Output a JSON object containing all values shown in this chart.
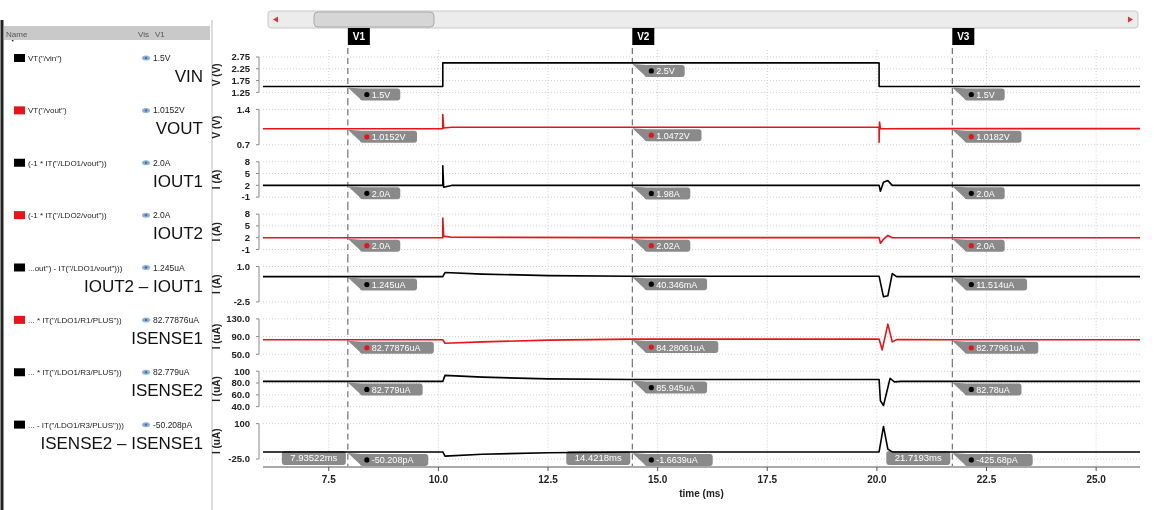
{
  "chart_data": [
    {
      "type": "line",
      "title": "VIN",
      "ylabel": "V (V)",
      "legend": "left",
      "grid": true,
      "tick_labels": "y",
      "xlim": [
        6,
        26
      ],
      "xticks": [
        7.5,
        10,
        12.5,
        15,
        17.5,
        20,
        22.5,
        25
      ],
      "ylim": [
        1.25,
        2.75
      ],
      "yticks": [
        1.25,
        1.75,
        2.25,
        2.75
      ],
      "series": [
        {
          "name": "VT(\"/vin\")",
          "color": "#000000",
          "x": [
            6,
            10.1,
            10.1,
            20.05,
            20.05,
            26
          ],
          "values": [
            1.5,
            1.5,
            2.5,
            2.5,
            1.5,
            1.5
          ]
        }
      ],
      "ref_lines": [
        {
          "axis": "x",
          "value": 7.93522,
          "label": "V1"
        },
        {
          "axis": "x",
          "value": 14.4218,
          "label": "V2"
        },
        {
          "axis": "x",
          "value": 21.7193,
          "label": "V3"
        }
      ],
      "annotations": [
        "Name",
        "Vis",
        "V1",
        "1.5V",
        {
          "text": "1.5V",
          "x": 7.93522,
          "y": 1.5
        },
        {
          "text": "2.5V",
          "x": 14.4218,
          "y": 2.5
        },
        {
          "text": "1.5V",
          "x": 21.7193,
          "y": 1.5
        }
      ]
    },
    {
      "type": "line",
      "title": "VOUT",
      "ylabel": "V (V)",
      "legend": "left",
      "grid": true,
      "tick_labels": "y",
      "xlim": [
        6,
        26
      ],
      "xticks": [
        7.5,
        10,
        12.5,
        15,
        17.5,
        20,
        22.5,
        25
      ],
      "ylim": [
        0.7,
        1.4
      ],
      "yticks": [
        0.7,
        1.4
      ],
      "series": [
        {
          "name": "VT(\"/vout\")",
          "color": "#e8141a",
          "x": [
            6,
            10.1,
            10.1,
            10.12,
            10.3,
            14.4218,
            20.05,
            20.05,
            20.06,
            20.08,
            21.7193,
            26
          ],
          "values": [
            1.0152,
            1.0152,
            1.3,
            1.03,
            1.045,
            1.0472,
            1.047,
            0.75,
            1.15,
            1.018,
            1.0182,
            1.0182
          ]
        }
      ],
      "ref_lines": [
        {
          "axis": "x",
          "value": 7.93522
        },
        {
          "axis": "x",
          "value": 14.4218
        },
        {
          "axis": "x",
          "value": 21.7193
        }
      ],
      "annotations": [
        "1.0152V",
        {
          "text": "1.0152V",
          "x": 7.93522,
          "y": 1.0152
        },
        {
          "text": "1.0472V",
          "x": 14.4218,
          "y": 1.0472
        },
        {
          "text": "1.0182V",
          "x": 21.7193,
          "y": 1.0182
        }
      ]
    },
    {
      "type": "line",
      "title": "IOUT1",
      "ylabel": "I (A)",
      "legend": "left",
      "grid": true,
      "tick_labels": "y",
      "xlim": [
        6,
        26
      ],
      "xticks": [
        7.5,
        10,
        12.5,
        15,
        17.5,
        20,
        22.5,
        25
      ],
      "ylim": [
        -1,
        8
      ],
      "yticks": [
        -1,
        2,
        5,
        8
      ],
      "series": [
        {
          "name": "(-1 * IT(\"/LDO1/vout\"))",
          "color": "#000000",
          "x": [
            6,
            10.1,
            10.1,
            10.12,
            10.3,
            14.4218,
            20.05,
            20.08,
            20.15,
            20.25,
            20.35,
            20.5,
            21.7193,
            26
          ],
          "values": [
            2,
            2,
            7,
            1.5,
            1.98,
            1.98,
            1.98,
            0.5,
            2.8,
            3.2,
            2,
            2,
            2,
            2
          ]
        }
      ],
      "ref_lines": [
        {
          "axis": "x",
          "value": 7.93522
        },
        {
          "axis": "x",
          "value": 14.4218
        },
        {
          "axis": "x",
          "value": 21.7193
        }
      ],
      "annotations": [
        "2.0A",
        {
          "text": "2.0A",
          "x": 7.93522,
          "y": 2
        },
        {
          "text": "1.98A",
          "x": 14.4218,
          "y": 1.98
        },
        {
          "text": "2.0A",
          "x": 21.7193,
          "y": 2
        }
      ]
    },
    {
      "type": "line",
      "title": "IOUT2",
      "ylabel": "I (A)",
      "legend": "left",
      "grid": true,
      "tick_labels": "y",
      "xlim": [
        6,
        26
      ],
      "xticks": [
        7.5,
        10,
        12.5,
        15,
        17.5,
        20,
        22.5,
        25
      ],
      "ylim": [
        -1,
        8
      ],
      "yticks": [
        -1,
        2,
        5,
        8
      ],
      "series": [
        {
          "name": "(-1 * IT(\"/LDO2/vout\"))",
          "color": "#e8141a",
          "x": [
            6,
            10.1,
            10.1,
            10.12,
            10.3,
            14.4218,
            20.05,
            20.08,
            20.15,
            20.25,
            20.35,
            20.5,
            21.7193,
            26
          ],
          "values": [
            2,
            2,
            7,
            2.4,
            2.1,
            2.02,
            2.02,
            0.6,
            1.6,
            2.6,
            2,
            2,
            2,
            2
          ]
        }
      ],
      "ref_lines": [
        {
          "axis": "x",
          "value": 7.93522
        },
        {
          "axis": "x",
          "value": 14.4218
        },
        {
          "axis": "x",
          "value": 21.7193
        }
      ],
      "annotations": [
        "2.0A",
        {
          "text": "2.0A",
          "x": 7.93522,
          "y": 2
        },
        {
          "text": "2.02A",
          "x": 14.4218,
          "y": 2.02
        },
        {
          "text": "2.0A",
          "x": 21.7193,
          "y": 2
        }
      ]
    },
    {
      "type": "line",
      "title": "IOUT2 – IOUT1",
      "ylabel": "I (A)",
      "legend": "left",
      "grid": true,
      "tick_labels": "y",
      "xlim": [
        6,
        26
      ],
      "xticks": [
        7.5,
        10,
        12.5,
        15,
        17.5,
        20,
        22.5,
        25
      ],
      "ylim": [
        -2.5,
        1
      ],
      "yticks": [
        -2.5,
        {
          "value": 1,
          "label": "1.0"
        }
      ],
      "series": [
        {
          "name": "...out\") - IT(\"/LDO1/vout\")))",
          "color": "#000000",
          "x": [
            6,
            10.1,
            10.15,
            11,
            12.5,
            14.4218,
            20.05,
            20.15,
            20.25,
            20.35,
            20.45,
            21.7193,
            26
          ],
          "values": [
            0,
            0,
            0.4,
            0.25,
            0.1,
            0.04,
            0.04,
            -2,
            -1.9,
            0.3,
            0,
            0,
            0
          ]
        }
      ],
      "ref_lines": [
        {
          "axis": "x",
          "value": 7.93522
        },
        {
          "axis": "x",
          "value": 14.4218
        },
        {
          "axis": "x",
          "value": 21.7193
        }
      ],
      "annotations": [
        "1.245uA",
        {
          "text": "1.245uA",
          "x": 7.93522,
          "y": 0
        },
        {
          "text": "40.346mA",
          "x": 14.4218,
          "y": 0.04
        },
        {
          "text": "11.514uA",
          "x": 21.7193,
          "y": 0
        }
      ]
    },
    {
      "type": "line",
      "title": "ISENSE1",
      "ylabel": "I (uA)",
      "legend": "left",
      "grid": true,
      "tick_labels": "y",
      "xlim": [
        6,
        26
      ],
      "xticks": [
        7.5,
        10,
        12.5,
        15,
        17.5,
        20,
        22.5,
        25
      ],
      "ylim": [
        50,
        130
      ],
      "yticks": [
        {
          "value": 50,
          "label": "50.0"
        },
        {
          "value": 90,
          "label": "90.0"
        },
        {
          "value": 130,
          "label": "130.0"
        }
      ],
      "series": [
        {
          "name": "... * IT(\"/LDO1/R1/PLUS\"))",
          "color": "#e8141a",
          "x": [
            6,
            10.1,
            10.15,
            11,
            12.5,
            14.4218,
            20.05,
            20.12,
            20.25,
            20.35,
            20.45,
            21.7193,
            26
          ],
          "values": [
            82.78,
            82.78,
            75,
            78,
            82,
            84.28,
            84.28,
            60,
            118,
            78,
            83,
            82.78,
            82.78
          ]
        }
      ],
      "ref_lines": [
        {
          "axis": "x",
          "value": 7.93522
        },
        {
          "axis": "x",
          "value": 14.4218
        },
        {
          "axis": "x",
          "value": 21.7193
        }
      ],
      "annotations": [
        "82.77876uA",
        {
          "text": "82.77876uA",
          "x": 7.93522,
          "y": 82.78
        },
        {
          "text": "84.28061uA",
          "x": 14.4218,
          "y": 84.28
        },
        {
          "text": "82.77961uA",
          "x": 21.7193,
          "y": 82.78
        }
      ]
    },
    {
      "type": "line",
      "title": "ISENSE2",
      "ylabel": "I (uA)",
      "legend": "left",
      "grid": true,
      "tick_labels": "y",
      "xlim": [
        6,
        26
      ],
      "xticks": [
        7.5,
        10,
        12.5,
        15,
        17.5,
        20,
        22.5,
        25
      ],
      "ylim": [
        40,
        100
      ],
      "yticks": [
        {
          "value": 40,
          "label": "40.0"
        },
        {
          "value": 60,
          "label": "60.0"
        },
        {
          "value": 80,
          "label": "80.0"
        },
        100
      ],
      "series": [
        {
          "name": "... * IT(\"/LDO1/R3/PLUS\"))",
          "color": "#000000",
          "x": [
            6,
            10.1,
            10.15,
            11,
            12.5,
            14.4218,
            20.05,
            20.08,
            20.15,
            20.3,
            20.4,
            20.55,
            21.7193,
            26
          ],
          "values": [
            82.78,
            82.78,
            93,
            90,
            87,
            85.95,
            85.95,
            50,
            42,
            88,
            82,
            82.78,
            82.78,
            82.78
          ]
        }
      ],
      "ref_lines": [
        {
          "axis": "x",
          "value": 7.93522
        },
        {
          "axis": "x",
          "value": 14.4218
        },
        {
          "axis": "x",
          "value": 21.7193
        }
      ],
      "annotations": [
        "82.779uA",
        {
          "text": "82.779uA",
          "x": 7.93522,
          "y": 82.78
        },
        {
          "text": "85.945uA",
          "x": 14.4218,
          "y": 85.95
        },
        {
          "text": "82.78uA",
          "x": 21.7193,
          "y": 82.78
        }
      ]
    },
    {
      "type": "line",
      "title": "ISENSE2 – ISENSE1",
      "ylabel": "I (uA)",
      "xlabel": "time (ms)",
      "legend": "left",
      "grid": true,
      "xlim": [
        6,
        26
      ],
      "xticks": [
        {
          "value": 7.5,
          "label": "7.5"
        },
        {
          "value": 10,
          "label": "10.0"
        },
        {
          "value": 12.5,
          "label": "12.5"
        },
        {
          "value": 15,
          "label": "15.0"
        },
        {
          "value": 17.5,
          "label": "17.5"
        },
        {
          "value": 20,
          "label": "20.0"
        },
        {
          "value": 22.5,
          "label": "22.5"
        },
        {
          "value": 25,
          "label": "25.0"
        }
      ],
      "ylim": [
        -25,
        100
      ],
      "yticks": [
        {
          "value": -25,
          "label": "-25.0"
        },
        100
      ],
      "series": [
        {
          "name": "... - IT(\"/LDO1/R3/PLUS\")))",
          "color": "#000000",
          "x": [
            6,
            10.1,
            10.15,
            11,
            12.5,
            14.4218,
            20.05,
            20.15,
            20.25,
            20.35,
            21.7193,
            26
          ],
          "values": [
            0,
            0,
            -15,
            -8,
            -3,
            0,
            0,
            90,
            10,
            0,
            0,
            0
          ]
        }
      ],
      "ref_lines": [
        {
          "axis": "x",
          "value": 7.93522,
          "label": "7.93522ms"
        },
        {
          "axis": "x",
          "value": 14.4218,
          "label": "14.4218ms"
        },
        {
          "axis": "x",
          "value": 21.7193,
          "label": "21.7193ms"
        }
      ],
      "annotations": [
        "-50.208pA",
        {
          "text": "-50.208pA",
          "x": 7.93522,
          "y": 0
        },
        {
          "text": "-1.6639uA",
          "x": 14.4218,
          "y": 0
        },
        {
          "text": "-425.68pA",
          "x": 21.7193,
          "y": 0
        }
      ]
    }
  ]
}
